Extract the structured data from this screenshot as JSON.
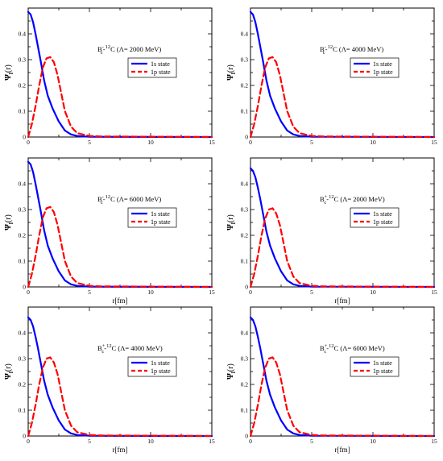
{
  "legend_entries": [
    "1s state",
    "1p state"
  ],
  "series_colors": {
    "1s state": "#0000ff",
    "1p state": "#ff0000"
  },
  "chart_data": [
    {
      "type": "line",
      "label_parts": {
        "particle": "B",
        "charge": "-",
        "sub": "c",
        "dash": "-",
        "mass": "12",
        "nucleus": "C",
        "cutoff": "(Λ= 2000 MeV)"
      },
      "ylabel": {
        "main": "Ψ",
        "sub": "l",
        "arg": "(r)"
      },
      "xlabel": "",
      "xlim": [
        0,
        15
      ],
      "ylim": [
        0,
        0.5
      ],
      "xticks": [
        0,
        5,
        10,
        15
      ],
      "yticks": [
        0,
        0.1,
        0.2,
        0.3,
        0.4
      ],
      "legend": "center-right",
      "series": [
        {
          "name": "1s state",
          "x": [
            0,
            0.2,
            0.4,
            0.6,
            0.8,
            1.0,
            1.3,
            1.6,
            2.0,
            2.5,
            3.0,
            3.5,
            4.0,
            5.0,
            15
          ],
          "values": [
            0.485,
            0.475,
            0.445,
            0.4,
            0.35,
            0.3,
            0.22,
            0.16,
            0.11,
            0.06,
            0.025,
            0.01,
            0.004,
            0.001,
            0.0
          ]
        },
        {
          "name": "1p state",
          "x": [
            0,
            0.3,
            0.6,
            0.9,
            1.2,
            1.5,
            1.8,
            2.1,
            2.4,
            2.7,
            3.0,
            3.5,
            4.0,
            5.0,
            6.0,
            15
          ],
          "values": [
            0.0,
            0.05,
            0.12,
            0.2,
            0.27,
            0.305,
            0.31,
            0.29,
            0.24,
            0.17,
            0.1,
            0.04,
            0.015,
            0.004,
            0.002,
            0.0
          ]
        }
      ]
    },
    {
      "type": "line",
      "label_parts": {
        "particle": "B",
        "charge": "-",
        "sub": "c",
        "dash": "-",
        "mass": "12",
        "nucleus": "C",
        "cutoff": "(Λ= 4000 MeV)"
      },
      "ylabel": {
        "main": "Ψ",
        "sub": "l",
        "arg": "(r)"
      },
      "xlabel": "",
      "xlim": [
        0,
        15
      ],
      "ylim": [
        0,
        0.5
      ],
      "xticks": [
        0,
        5,
        10,
        15
      ],
      "yticks": [
        0,
        0.1,
        0.2,
        0.3,
        0.4
      ],
      "legend": "center-right",
      "series": [
        {
          "name": "1s state",
          "x": [
            0,
            0.2,
            0.4,
            0.6,
            0.8,
            1.0,
            1.3,
            1.6,
            2.0,
            2.5,
            3.0,
            3.5,
            4.0,
            5.0,
            15
          ],
          "values": [
            0.485,
            0.475,
            0.445,
            0.4,
            0.35,
            0.3,
            0.22,
            0.16,
            0.11,
            0.06,
            0.025,
            0.01,
            0.004,
            0.001,
            0.0
          ]
        },
        {
          "name": "1p state",
          "x": [
            0,
            0.3,
            0.6,
            0.9,
            1.2,
            1.5,
            1.8,
            2.1,
            2.4,
            2.7,
            3.0,
            3.5,
            4.0,
            5.0,
            6.0,
            15
          ],
          "values": [
            0.0,
            0.05,
            0.12,
            0.2,
            0.27,
            0.305,
            0.31,
            0.29,
            0.24,
            0.17,
            0.1,
            0.04,
            0.015,
            0.004,
            0.002,
            0.0
          ]
        }
      ]
    },
    {
      "type": "line",
      "label_parts": {
        "particle": "B",
        "charge": "-",
        "sub": "c",
        "dash": "-",
        "mass": "12",
        "nucleus": "C",
        "cutoff": "(Λ= 6000 MeV)"
      },
      "ylabel": {
        "main": "Ψ",
        "sub": "l",
        "arg": "(r)"
      },
      "xlabel": "r[fm]",
      "xlim": [
        0,
        15
      ],
      "ylim": [
        0,
        0.5
      ],
      "xticks": [
        0,
        5,
        10,
        15
      ],
      "yticks": [
        0,
        0.1,
        0.2,
        0.3,
        0.4
      ],
      "legend": "center-right",
      "series": [
        {
          "name": "1s state",
          "x": [
            0,
            0.2,
            0.4,
            0.6,
            0.8,
            1.0,
            1.3,
            1.6,
            2.0,
            2.5,
            3.0,
            3.5,
            4.0,
            5.0,
            15
          ],
          "values": [
            0.485,
            0.475,
            0.445,
            0.4,
            0.35,
            0.3,
            0.22,
            0.16,
            0.11,
            0.06,
            0.025,
            0.01,
            0.004,
            0.001,
            0.0
          ]
        },
        {
          "name": "1p state",
          "x": [
            0,
            0.3,
            0.6,
            0.9,
            1.2,
            1.5,
            1.8,
            2.1,
            2.4,
            2.7,
            3.0,
            3.5,
            4.0,
            5.0,
            6.0,
            15
          ],
          "values": [
            0.0,
            0.05,
            0.12,
            0.2,
            0.27,
            0.305,
            0.31,
            0.29,
            0.24,
            0.17,
            0.1,
            0.04,
            0.015,
            0.004,
            0.002,
            0.0
          ]
        }
      ]
    },
    {
      "type": "line",
      "label_parts": {
        "particle": "B",
        "charge": "+",
        "sub": "c",
        "dash": "-",
        "mass": "12",
        "nucleus": "C",
        "cutoff": "(Λ= 2000 MeV)"
      },
      "ylabel": {
        "main": "Ψ",
        "sub": "l",
        "arg": "(r)"
      },
      "xlabel": "r[fm]",
      "xlim": [
        0,
        15
      ],
      "ylim": [
        0,
        0.5
      ],
      "xticks": [
        0,
        5,
        10,
        15
      ],
      "yticks": [
        0,
        0.1,
        0.2,
        0.3,
        0.4
      ],
      "legend": "center-right",
      "series": [
        {
          "name": "1s state",
          "x": [
            0,
            0.2,
            0.4,
            0.6,
            0.8,
            1.0,
            1.3,
            1.6,
            2.0,
            2.5,
            3.0,
            3.5,
            4.0,
            5.0,
            15
          ],
          "values": [
            0.46,
            0.45,
            0.425,
            0.385,
            0.34,
            0.29,
            0.215,
            0.16,
            0.11,
            0.06,
            0.025,
            0.01,
            0.004,
            0.001,
            0.0
          ]
        },
        {
          "name": "1p state",
          "x": [
            0,
            0.3,
            0.6,
            0.9,
            1.2,
            1.5,
            1.8,
            2.1,
            2.4,
            2.7,
            3.0,
            3.5,
            4.0,
            5.0,
            6.0,
            15
          ],
          "values": [
            0.0,
            0.05,
            0.12,
            0.2,
            0.265,
            0.3,
            0.305,
            0.285,
            0.24,
            0.17,
            0.1,
            0.04,
            0.015,
            0.004,
            0.002,
            0.0
          ]
        }
      ]
    },
    {
      "type": "line",
      "label_parts": {
        "particle": "B",
        "charge": "+",
        "sub": "c",
        "dash": "-",
        "mass": "12",
        "nucleus": "C",
        "cutoff": "(Λ= 4000 MeV)"
      },
      "ylabel": {
        "main": "Ψ",
        "sub": "l",
        "arg": "(r)"
      },
      "xlabel": "r[fm]",
      "xlim": [
        0,
        15
      ],
      "ylim": [
        0,
        0.5
      ],
      "xticks": [
        0,
        5,
        10,
        15
      ],
      "yticks": [
        0,
        0.1,
        0.2,
        0.3,
        0.4
      ],
      "legend": "center-right",
      "series": [
        {
          "name": "1s state",
          "x": [
            0,
            0.2,
            0.4,
            0.6,
            0.8,
            1.0,
            1.3,
            1.6,
            2.0,
            2.5,
            3.0,
            3.5,
            4.0,
            5.0,
            15
          ],
          "values": [
            0.46,
            0.45,
            0.425,
            0.385,
            0.34,
            0.29,
            0.215,
            0.16,
            0.11,
            0.06,
            0.025,
            0.01,
            0.004,
            0.001,
            0.0
          ]
        },
        {
          "name": "1p state",
          "x": [
            0,
            0.3,
            0.6,
            0.9,
            1.2,
            1.5,
            1.8,
            2.1,
            2.4,
            2.7,
            3.0,
            3.5,
            4.0,
            5.0,
            6.0,
            15
          ],
          "values": [
            0.0,
            0.05,
            0.12,
            0.2,
            0.265,
            0.3,
            0.305,
            0.285,
            0.24,
            0.17,
            0.1,
            0.04,
            0.015,
            0.004,
            0.002,
            0.0
          ]
        }
      ]
    },
    {
      "type": "line",
      "label_parts": {
        "particle": "B",
        "charge": "+",
        "sub": "c",
        "dash": "-",
        "mass": "12",
        "nucleus": "C",
        "cutoff": "(Λ= 6000 MeV)"
      },
      "ylabel": {
        "main": "Ψ",
        "sub": "l",
        "arg": "(r)"
      },
      "xlabel": "r[fm]",
      "xlim": [
        0,
        15
      ],
      "ylim": [
        0,
        0.5
      ],
      "xticks": [
        0,
        5,
        10,
        15
      ],
      "yticks": [
        0,
        0.1,
        0.2,
        0.3,
        0.4
      ],
      "legend": "center-right",
      "series": [
        {
          "name": "1s state",
          "x": [
            0,
            0.2,
            0.4,
            0.6,
            0.8,
            1.0,
            1.3,
            1.6,
            2.0,
            2.5,
            3.0,
            3.5,
            4.0,
            5.0,
            15
          ],
          "values": [
            0.46,
            0.45,
            0.425,
            0.385,
            0.34,
            0.29,
            0.215,
            0.16,
            0.11,
            0.06,
            0.025,
            0.01,
            0.004,
            0.001,
            0.0
          ]
        },
        {
          "name": "1p state",
          "x": [
            0,
            0.3,
            0.6,
            0.9,
            1.2,
            1.5,
            1.8,
            2.1,
            2.4,
            2.7,
            3.0,
            3.5,
            4.0,
            5.0,
            6.0,
            15
          ],
          "values": [
            0.0,
            0.05,
            0.12,
            0.2,
            0.265,
            0.3,
            0.305,
            0.285,
            0.24,
            0.17,
            0.1,
            0.04,
            0.015,
            0.004,
            0.002,
            0.0
          ]
        }
      ]
    }
  ]
}
